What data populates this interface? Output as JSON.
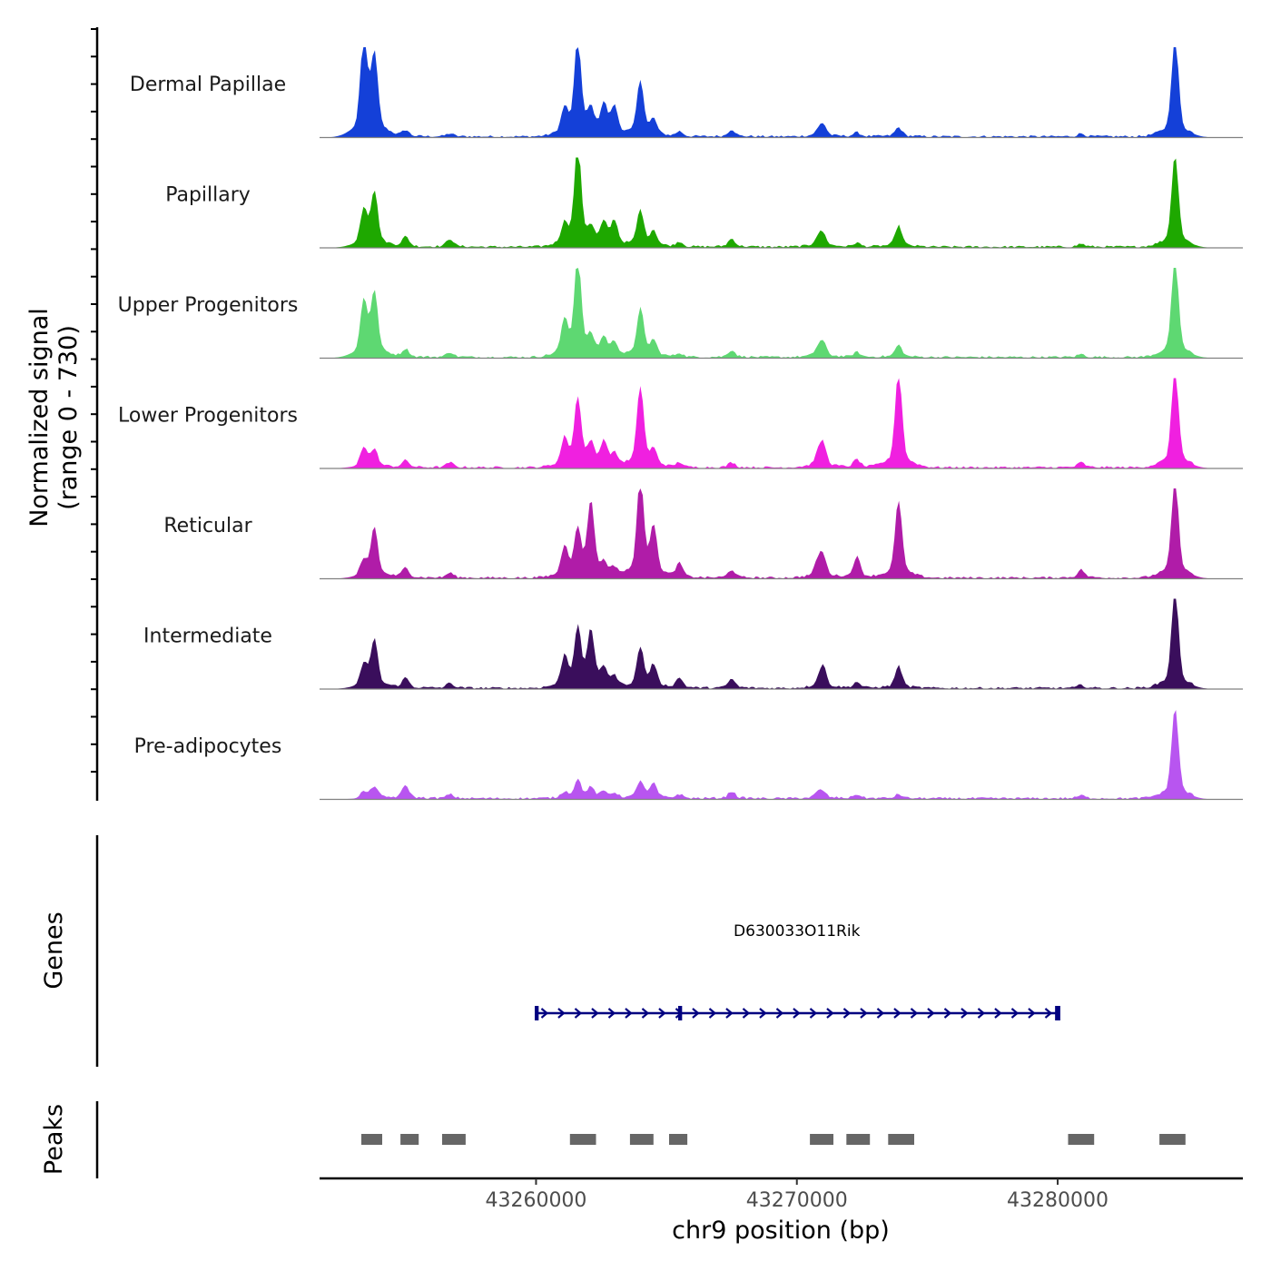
{
  "chart_data": {
    "type": "area",
    "title": "",
    "ylabel": "Normalized signal",
    "ylabel_range": "(range 0 - 730)",
    "ylim": [
      0,
      730
    ],
    "xlabel": "chr9 position (bp)",
    "xlim": [
      43251700,
      43287100
    ],
    "xticks": [
      43260000,
      43270000,
      43280000
    ],
    "xtick_labels": [
      "43260000",
      "43270000",
      "43280000"
    ],
    "tracks": [
      {
        "name": "Dermal Papillae",
        "color": "#1440d8",
        "scale": 1.0
      },
      {
        "name": "Papillary",
        "color": "#1ea800",
        "scale": 0.95
      },
      {
        "name": "Upper Progenitors",
        "color": "#5ed872",
        "scale": 0.95
      },
      {
        "name": "Lower Progenitors",
        "color": "#f020e0",
        "scale": 1.25
      },
      {
        "name": "Reticular",
        "color": "#b01ca8",
        "scale": 1.0
      },
      {
        "name": "Intermediate",
        "color": "#3a0e5c",
        "scale": 0.85
      },
      {
        "name": "Pre-adipocytes",
        "color": "#b855f0",
        "scale": 0.8
      }
    ],
    "signal_peaks": [
      {
        "pos": 43253400,
        "heights": [
          0.97,
          0.36,
          0.54,
          0.2,
          0.15,
          0.22,
          0.06
        ]
      },
      {
        "pos": 43253800,
        "heights": [
          0.78,
          0.54,
          0.63,
          0.17,
          0.5,
          0.48,
          0.12
        ]
      },
      {
        "pos": 43255000,
        "heights": [
          0.06,
          0.1,
          0.08,
          0.07,
          0.1,
          0.1,
          0.13
        ]
      },
      {
        "pos": 43256700,
        "heights": [
          0.03,
          0.08,
          0.05,
          0.05,
          0.05,
          0.05,
          0.04
        ]
      },
      {
        "pos": 43261100,
        "heights": [
          0.25,
          0.2,
          0.34,
          0.27,
          0.3,
          0.3,
          0.06
        ]
      },
      {
        "pos": 43261600,
        "heights": [
          0.95,
          1.0,
          0.98,
          0.68,
          0.45,
          0.57,
          0.18
        ]
      },
      {
        "pos": 43262100,
        "heights": [
          0.23,
          0.15,
          0.17,
          0.21,
          0.74,
          0.55,
          0.1
        ]
      },
      {
        "pos": 43262600,
        "heights": [
          0.3,
          0.22,
          0.18,
          0.25,
          0.12,
          0.18,
          0.06
        ]
      },
      {
        "pos": 43263000,
        "heights": [
          0.28,
          0.25,
          0.14,
          0.12,
          0.08,
          0.1,
          0.05
        ]
      },
      {
        "pos": 43264000,
        "heights": [
          0.55,
          0.36,
          0.48,
          0.8,
          0.98,
          0.4,
          0.17
        ]
      },
      {
        "pos": 43264500,
        "heights": [
          0.15,
          0.15,
          0.15,
          0.15,
          0.48,
          0.22,
          0.14
        ]
      },
      {
        "pos": 43265500,
        "heights": [
          0.05,
          0.05,
          0.04,
          0.05,
          0.14,
          0.1,
          0.04
        ]
      },
      {
        "pos": 43267500,
        "heights": [
          0.07,
          0.08,
          0.07,
          0.05,
          0.08,
          0.09,
          0.07
        ]
      },
      {
        "pos": 43270800,
        "heights": [
          0.04,
          0.08,
          0.07,
          0.1,
          0.14,
          0.04,
          0.05
        ]
      },
      {
        "pos": 43271000,
        "heights": [
          0.12,
          0.12,
          0.14,
          0.23,
          0.2,
          0.22,
          0.06
        ]
      },
      {
        "pos": 43272300,
        "heights": [
          0.04,
          0.04,
          0.05,
          0.08,
          0.21,
          0.06,
          0.04
        ]
      },
      {
        "pos": 43273900,
        "heights": [
          0.09,
          0.21,
          0.12,
          0.96,
          0.77,
          0.22,
          0.04
        ]
      },
      {
        "pos": 43280900,
        "heights": [
          0.03,
          0.03,
          0.03,
          0.05,
          0.08,
          0.03,
          0.03
        ]
      },
      {
        "pos": 43284500,
        "heights": [
          1.0,
          0.91,
          1.0,
          1.0,
          1.0,
          1.0,
          0.9
        ]
      }
    ],
    "genes": [
      {
        "name": "D630033O11Rik",
        "start": 43260000,
        "end": 43280000,
        "strand": "+",
        "exons": [
          [
            43259950,
            43260100
          ],
          [
            43265450,
            43265600
          ],
          [
            43279900,
            43280100
          ]
        ]
      }
    ],
    "peaks_label": "Peaks",
    "genes_label": "Genes",
    "peaks": [
      [
        43253300,
        43254100
      ],
      [
        43254800,
        43255500
      ],
      [
        43256400,
        43257300
      ],
      [
        43261300,
        43262300
      ],
      [
        43263600,
        43264500
      ],
      [
        43265100,
        43265800
      ],
      [
        43270500,
        43271400
      ],
      [
        43271900,
        43272800
      ],
      [
        43273500,
        43274500
      ],
      [
        43280400,
        43281400
      ],
      [
        43283900,
        43284900
      ]
    ]
  },
  "colors": {
    "gene": "#000080",
    "peak": "#666666",
    "baseline": "#808080"
  }
}
